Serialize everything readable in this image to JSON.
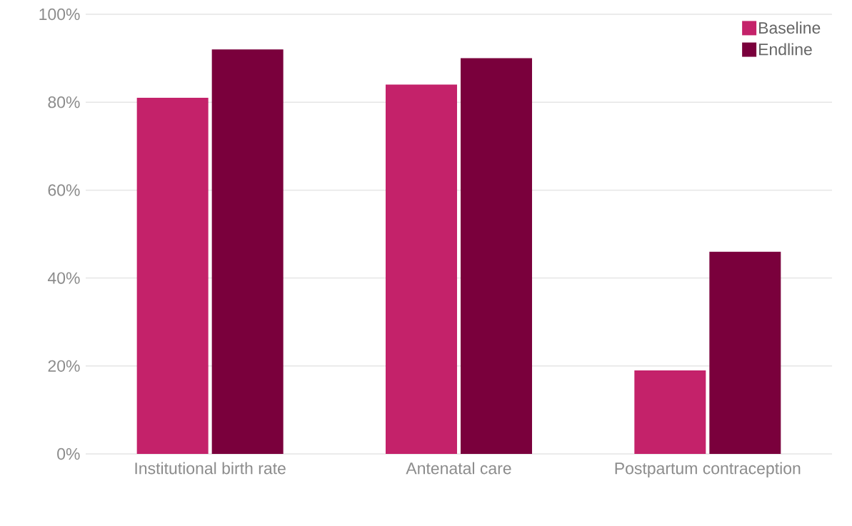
{
  "chart_data": {
    "type": "bar",
    "categories": [
      "Institutional birth rate",
      "Antenatal care",
      "Postpartum contraception"
    ],
    "series": [
      {
        "name": "Baseline",
        "color": "#c4226a",
        "values": [
          81,
          84,
          19
        ]
      },
      {
        "name": "Endline",
        "color": "#7a003c",
        "values": [
          92,
          90,
          46
        ]
      }
    ],
    "ylim": [
      0,
      100
    ],
    "yticks": [
      {
        "value": 0,
        "label": "0%"
      },
      {
        "value": 20,
        "label": "20%"
      },
      {
        "value": 40,
        "label": "40%"
      },
      {
        "value": 60,
        "label": "60%"
      },
      {
        "value": 80,
        "label": "80%"
      },
      {
        "value": 100,
        "label": "100%"
      }
    ],
    "grid": "y",
    "legend": "top right"
  }
}
